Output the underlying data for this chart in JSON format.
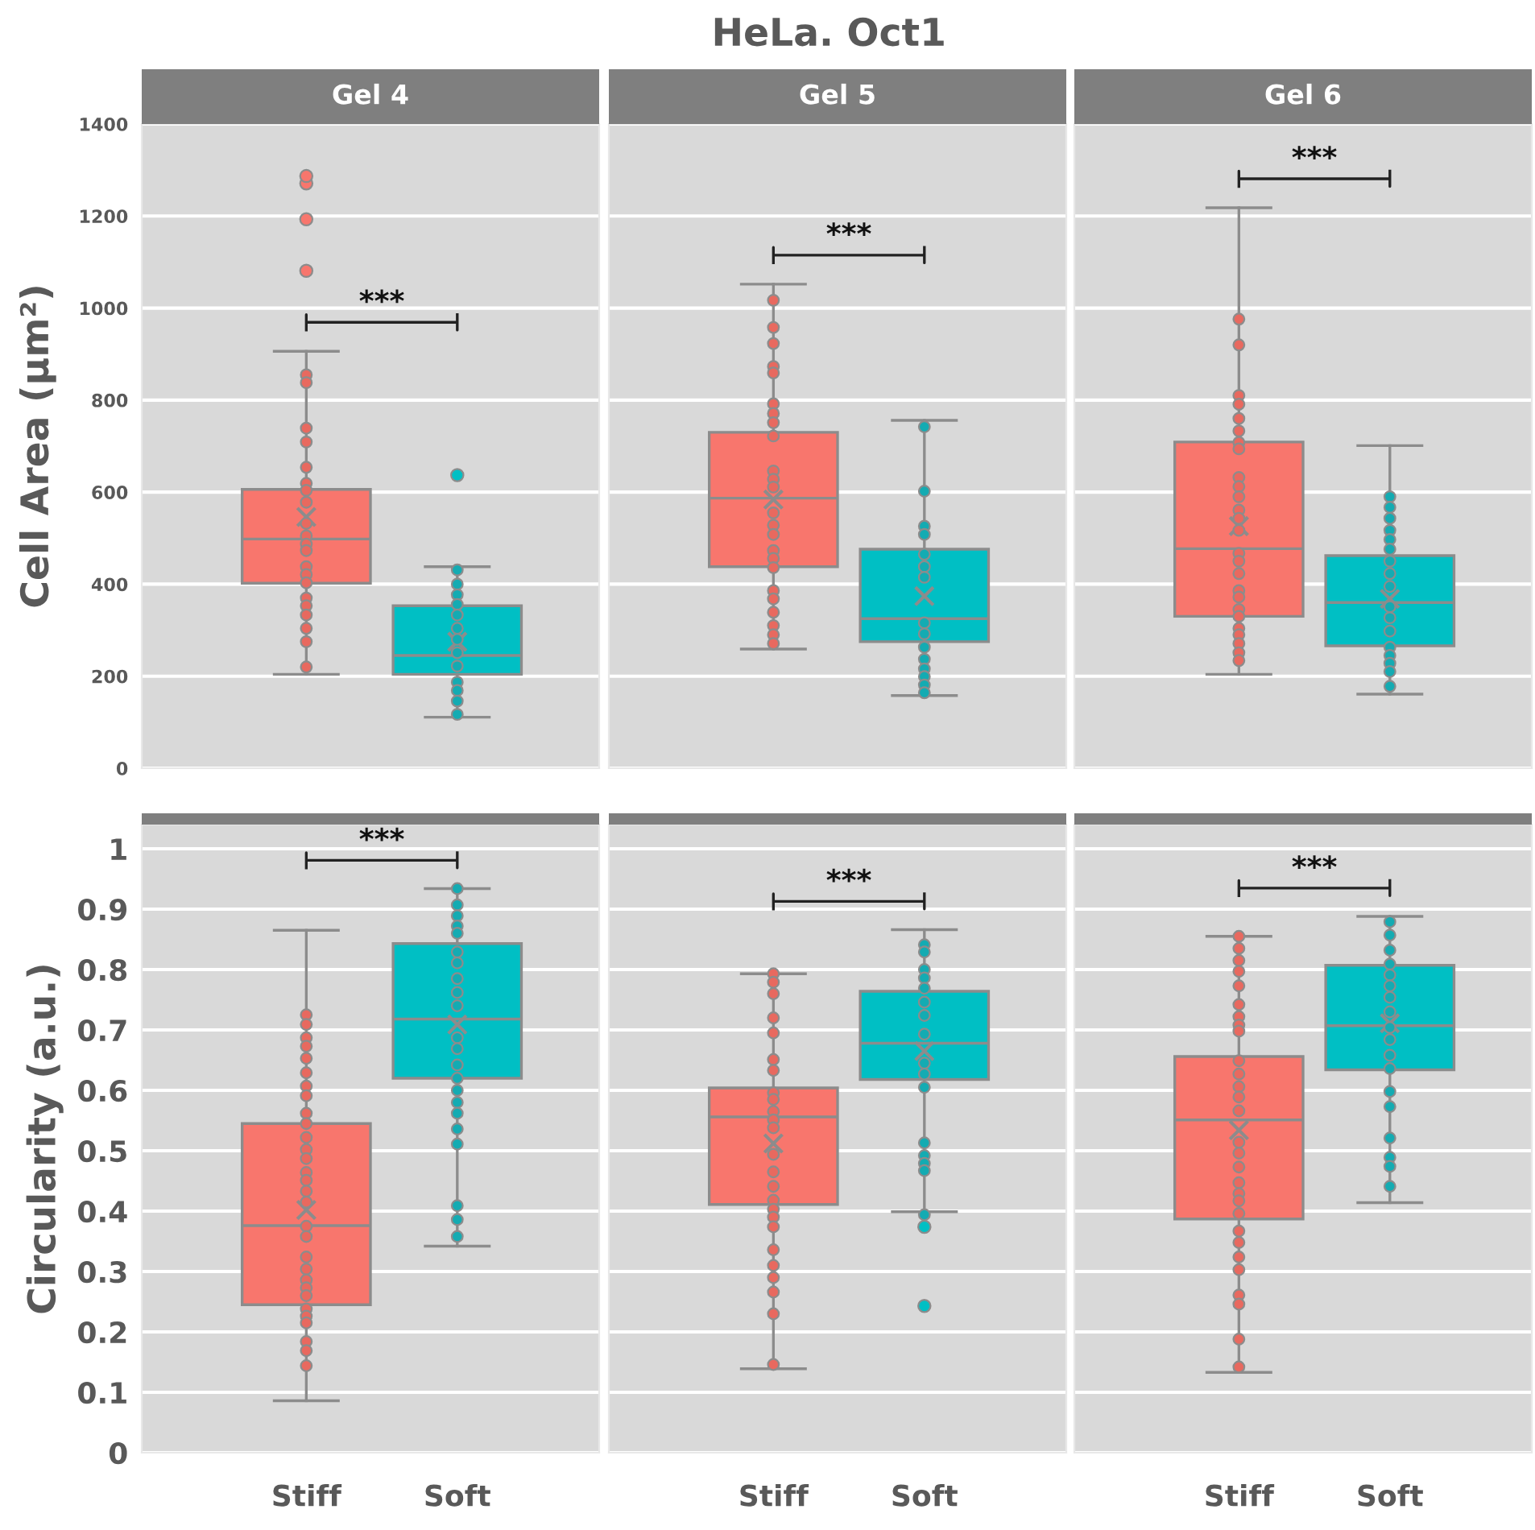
{
  "chart_data": [
    {
      "type": "box",
      "title": "Gel 4",
      "ylabel": "Cell Area (μm²)",
      "categories": [
        "Stiff",
        "Soft"
      ],
      "colors": [
        "#f8766d",
        "#00bfc4"
      ],
      "ylim": [
        0,
        1400
      ],
      "yticks": [
        0,
        200,
        400,
        600,
        800,
        1000,
        1200,
        1400
      ],
      "grid": "y",
      "tick_labels": "y",
      "annotations": [
        "HeLa. Oct1",
        "***"
      ],
      "boxes": [
        {
          "low": 204,
          "q1": 402,
          "median": 498,
          "q3": 606,
          "high": 906,
          "mean": 546,
          "outliers": [
            1081,
            1193,
            1271,
            1287
          ]
        },
        {
          "low": 111,
          "q1": 204,
          "median": 245,
          "q3": 353,
          "high": 438,
          "mean": 275,
          "outliers": [
            637
          ]
        }
      ],
      "series": [
        {
          "type": "scatter",
          "color": "#e8695f",
          "x": [
            "Stiff",
            "Stiff",
            "Stiff",
            "Stiff",
            "Stiff",
            "Stiff",
            "Stiff",
            "Stiff",
            "Stiff",
            "Stiff",
            "Stiff",
            "Stiff",
            "Stiff",
            "Stiff",
            "Stiff",
            "Stiff",
            "Stiff",
            "Stiff",
            "Stiff",
            "Stiff",
            "Stiff"
          ],
          "values": [
            855,
            838,
            739,
            709,
            654,
            619,
            604,
            578,
            532,
            505,
            487,
            473,
            438,
            421,
            403,
            370,
            353,
            333,
            304,
            275,
            220
          ]
        },
        {
          "type": "scatter",
          "color": "#14abb2",
          "x": [
            "Soft",
            "Soft",
            "Soft",
            "Soft",
            "Soft",
            "Soft",
            "Soft",
            "Soft",
            "Soft",
            "Soft",
            "Soft",
            "Soft",
            "Soft"
          ],
          "values": [
            431,
            400,
            377,
            356,
            333,
            304,
            280,
            251,
            222,
            187,
            169,
            146,
            117
          ]
        }
      ]
    },
    {
      "type": "box",
      "title": "Gel 5",
      "categories": [
        "Stiff",
        "Soft"
      ],
      "colors": [
        "#f8766d",
        "#00bfc4"
      ],
      "ylim": [
        0,
        1400
      ],
      "yticks": [
        0,
        200,
        400,
        600,
        800,
        1000,
        1200,
        1400
      ],
      "grid": "y",
      "tick_labels": false,
      "annotations": [
        "***"
      ],
      "boxes": [
        {
          "low": 259,
          "q1": 438,
          "median": 587,
          "q3": 730,
          "high": 1052,
          "mean": 584
        },
        {
          "low": 158,
          "q1": 275,
          "median": 325,
          "q3": 476,
          "high": 756,
          "mean": 374
        }
      ],
      "series": [
        {
          "type": "scatter",
          "color": "#e8695f",
          "x": [
            "Stiff",
            "Stiff",
            "Stiff",
            "Stiff",
            "Stiff",
            "Stiff",
            "Stiff",
            "Stiff",
            "Stiff",
            "Stiff",
            "Stiff",
            "Stiff",
            "Stiff",
            "Stiff",
            "Stiff",
            "Stiff",
            "Stiff",
            "Stiff",
            "Stiff",
            "Stiff",
            "Stiff",
            "Stiff",
            "Stiff",
            "Stiff"
          ],
          "values": [
            1017,
            958,
            923,
            873,
            859,
            792,
            771,
            751,
            722,
            646,
            628,
            611,
            555,
            528,
            508,
            473,
            456,
            436,
            386,
            368,
            339,
            310,
            290,
            271
          ]
        },
        {
          "type": "scatter",
          "color": "#14abb2",
          "x": [
            "Soft",
            "Soft",
            "Soft",
            "Soft",
            "Soft",
            "Soft",
            "Soft",
            "Soft",
            "Soft",
            "Soft",
            "Soft",
            "Soft",
            "Soft",
            "Soft",
            "Soft"
          ],
          "values": [
            742,
            602,
            526,
            508,
            465,
            438,
            415,
            316,
            292,
            263,
            237,
            216,
            199,
            181,
            164
          ]
        }
      ]
    },
    {
      "type": "box",
      "title": "Gel 6",
      "categories": [
        "Stiff",
        "Soft"
      ],
      "colors": [
        "#f8766d",
        "#00bfc4"
      ],
      "ylim": [
        0,
        1400
      ],
      "yticks": [
        0,
        200,
        400,
        600,
        800,
        1000,
        1200,
        1400
      ],
      "grid": "y",
      "tick_labels": false,
      "annotations": [
        "***"
      ],
      "boxes": [
        {
          "low": 204,
          "q1": 330,
          "median": 477,
          "q3": 709,
          "high": 1218,
          "mean": 526
        },
        {
          "low": 161,
          "q1": 266,
          "median": 360,
          "q3": 462,
          "high": 701,
          "mean": 368
        }
      ],
      "series": [
        {
          "type": "scatter",
          "color": "#e8695f",
          "x": [
            "Stiff",
            "Stiff",
            "Stiff",
            "Stiff",
            "Stiff",
            "Stiff",
            "Stiff",
            "Stiff",
            "Stiff",
            "Stiff",
            "Stiff",
            "Stiff",
            "Stiff",
            "Stiff",
            "Stiff",
            "Stiff",
            "Stiff",
            "Stiff",
            "Stiff",
            "Stiff",
            "Stiff",
            "Stiff",
            "Stiff",
            "Stiff",
            "Stiff",
            "Stiff"
          ],
          "values": [
            976,
            920,
            810,
            791,
            760,
            733,
            708,
            694,
            632,
            612,
            590,
            561,
            543,
            517,
            467,
            450,
            423,
            386,
            372,
            345,
            330,
            304,
            290,
            271,
            251,
            234
          ]
        },
        {
          "type": "scatter",
          "color": "#14abb2",
          "x": [
            "Soft",
            "Soft",
            "Soft",
            "Soft",
            "Soft",
            "Soft",
            "Soft",
            "Soft",
            "Soft",
            "Soft",
            "Soft",
            "Soft",
            "Soft",
            "Soft",
            "Soft",
            "Soft",
            "Soft"
          ],
          "values": [
            590,
            567,
            543,
            517,
            497,
            476,
            450,
            423,
            395,
            351,
            327,
            298,
            263,
            245,
            228,
            210,
            178
          ]
        }
      ]
    },
    {
      "type": "box",
      "ylabel": "Circularity (a.u.)",
      "categories": [
        "Stiff",
        "Soft"
      ],
      "colors": [
        "#f8766d",
        "#00bfc4"
      ],
      "ylim": [
        0,
        1.04
      ],
      "yticks": [
        0,
        0.1,
        0.2,
        0.3,
        0.4,
        0.5,
        0.6,
        0.7,
        0.8,
        0.9,
        1
      ],
      "grid": "y",
      "annotations": [
        "***"
      ],
      "boxes": [
        {
          "low": 0.086,
          "q1": 0.245,
          "median": 0.376,
          "q3": 0.545,
          "high": 0.865,
          "mean": 0.402
        },
        {
          "low": 0.342,
          "q1": 0.62,
          "median": 0.718,
          "q3": 0.843,
          "high": 0.934,
          "mean": 0.709
        }
      ],
      "series": [
        {
          "type": "scatter",
          "color": "#e8695f",
          "x": [
            "Stiff",
            "Stiff",
            "Stiff",
            "Stiff",
            "Stiff",
            "Stiff",
            "Stiff",
            "Stiff",
            "Stiff",
            "Stiff",
            "Stiff",
            "Stiff",
            "Stiff",
            "Stiff",
            "Stiff",
            "Stiff",
            "Stiff",
            "Stiff",
            "Stiff",
            "Stiff",
            "Stiff",
            "Stiff",
            "Stiff",
            "Stiff",
            "Stiff",
            "Stiff",
            "Stiff",
            "Stiff",
            "Stiff",
            "Stiff"
          ],
          "values": [
            0.725,
            0.709,
            0.687,
            0.673,
            0.653,
            0.629,
            0.607,
            0.591,
            0.562,
            0.545,
            0.522,
            0.502,
            0.487,
            0.464,
            0.451,
            0.433,
            0.415,
            0.375,
            0.358,
            0.324,
            0.304,
            0.286,
            0.273,
            0.26,
            0.238,
            0.226,
            0.215,
            0.184,
            0.169,
            0.144
          ]
        },
        {
          "type": "scatter",
          "color": "#14abb2",
          "x": [
            "Soft",
            "Soft",
            "Soft",
            "Soft",
            "Soft",
            "Soft",
            "Soft",
            "Soft",
            "Soft",
            "Soft",
            "Soft",
            "Soft",
            "Soft",
            "Soft",
            "Soft",
            "Soft",
            "Soft",
            "Soft",
            "Soft",
            "Soft",
            "Soft",
            "Soft"
          ],
          "values": [
            0.934,
            0.907,
            0.889,
            0.872,
            0.86,
            0.829,
            0.811,
            0.785,
            0.762,
            0.74,
            0.687,
            0.669,
            0.642,
            0.62,
            0.6,
            0.58,
            0.562,
            0.536,
            0.511,
            0.409,
            0.386,
            0.358
          ]
        }
      ]
    },
    {
      "type": "box",
      "categories": [
        "Stiff",
        "Soft"
      ],
      "colors": [
        "#f8766d",
        "#00bfc4"
      ],
      "ylim": [
        0,
        1.04
      ],
      "yticks": [
        0,
        0.1,
        0.2,
        0.3,
        0.4,
        0.5,
        0.6,
        0.7,
        0.8,
        0.9,
        1
      ],
      "grid": "y",
      "tick_labels": "x",
      "annotations": [
        "***"
      ],
      "boxes": [
        {
          "low": 0.139,
          "q1": 0.411,
          "median": 0.556,
          "q3": 0.604,
          "high": 0.793,
          "mean": 0.512
        },
        {
          "low": 0.399,
          "q1": 0.618,
          "median": 0.678,
          "q3": 0.764,
          "high": 0.866,
          "mean": 0.665,
          "outliers": [
            0.374,
            0.243
          ]
        }
      ],
      "series": [
        {
          "type": "scatter",
          "color": "#e8695f",
          "x": [
            "Stiff",
            "Stiff",
            "Stiff",
            "Stiff",
            "Stiff",
            "Stiff",
            "Stiff",
            "Stiff",
            "Stiff",
            "Stiff",
            "Stiff",
            "Stiff",
            "Stiff",
            "Stiff",
            "Stiff",
            "Stiff",
            "Stiff",
            "Stiff",
            "Stiff",
            "Stiff",
            "Stiff",
            "Stiff",
            "Stiff",
            "Stiff",
            "Stiff"
          ],
          "values": [
            0.793,
            0.779,
            0.76,
            0.72,
            0.695,
            0.651,
            0.633,
            0.596,
            0.585,
            0.565,
            0.551,
            0.538,
            0.494,
            0.465,
            0.441,
            0.418,
            0.403,
            0.39,
            0.374,
            0.336,
            0.31,
            0.29,
            0.266,
            0.23,
            0.146
          ]
        },
        {
          "type": "scatter",
          "color": "#14abb2",
          "x": [
            "Soft",
            "Soft",
            "Soft",
            "Soft",
            "Soft",
            "Soft",
            "Soft",
            "Soft",
            "Soft",
            "Soft",
            "Soft",
            "Soft",
            "Soft",
            "Soft",
            "Soft",
            "Soft"
          ],
          "values": [
            0.841,
            0.829,
            0.8,
            0.786,
            0.769,
            0.746,
            0.724,
            0.693,
            0.645,
            0.627,
            0.605,
            0.513,
            0.492,
            0.479,
            0.467,
            0.394
          ]
        }
      ]
    },
    {
      "type": "box",
      "categories": [
        "Stiff",
        "Soft"
      ],
      "colors": [
        "#f8766d",
        "#00bfc4"
      ],
      "ylim": [
        0,
        1.04
      ],
      "yticks": [
        0,
        0.1,
        0.2,
        0.3,
        0.4,
        0.5,
        0.6,
        0.7,
        0.8,
        0.9,
        1
      ],
      "grid": "y",
      "tick_labels": "x",
      "annotations": [
        "***"
      ],
      "boxes": [
        {
          "low": 0.133,
          "q1": 0.387,
          "median": 0.551,
          "q3": 0.656,
          "high": 0.855,
          "mean": 0.534
        },
        {
          "low": 0.414,
          "q1": 0.634,
          "median": 0.707,
          "q3": 0.807,
          "high": 0.888,
          "mean": 0.711
        }
      ],
      "series": [
        {
          "type": "scatter",
          "color": "#e8695f",
          "x": [
            "Stiff",
            "Stiff",
            "Stiff",
            "Stiff",
            "Stiff",
            "Stiff",
            "Stiff",
            "Stiff",
            "Stiff",
            "Stiff",
            "Stiff",
            "Stiff",
            "Stiff",
            "Stiff",
            "Stiff",
            "Stiff",
            "Stiff",
            "Stiff",
            "Stiff",
            "Stiff",
            "Stiff",
            "Stiff",
            "Stiff",
            "Stiff",
            "Stiff",
            "Stiff",
            "Stiff",
            "Stiff",
            "Stiff"
          ],
          "values": [
            0.855,
            0.835,
            0.815,
            0.797,
            0.773,
            0.742,
            0.722,
            0.708,
            0.698,
            0.649,
            0.627,
            0.606,
            0.589,
            0.566,
            0.514,
            0.496,
            0.473,
            0.447,
            0.429,
            0.417,
            0.396,
            0.367,
            0.348,
            0.324,
            0.303,
            0.261,
            0.246,
            0.188,
            0.142
          ]
        },
        {
          "type": "scatter",
          "color": "#14abb2",
          "x": [
            "Soft",
            "Soft",
            "Soft",
            "Soft",
            "Soft",
            "Soft",
            "Soft",
            "Soft",
            "Soft",
            "Soft",
            "Soft",
            "Soft",
            "Soft",
            "Soft",
            "Soft",
            "Soft",
            "Soft",
            "Soft"
          ],
          "values": [
            0.879,
            0.857,
            0.832,
            0.809,
            0.791,
            0.773,
            0.754,
            0.73,
            0.704,
            0.684,
            0.658,
            0.636,
            0.598,
            0.573,
            0.521,
            0.489,
            0.474,
            0.441
          ]
        }
      ]
    }
  ]
}
